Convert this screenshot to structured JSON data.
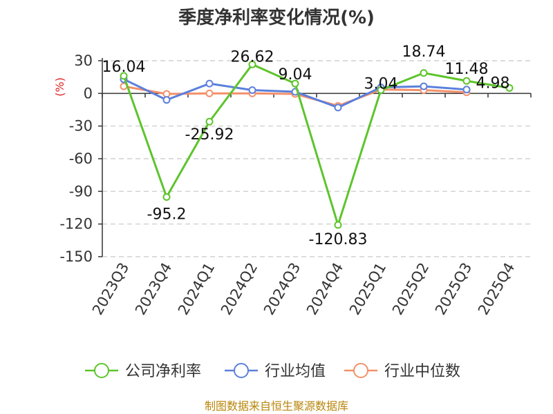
{
  "chart_data": {
    "type": "line",
    "title": "季度净利率变化情况(%)",
    "ylabel": "(%)",
    "categories": [
      "2023Q3",
      "2023Q4",
      "2024Q1",
      "2024Q2",
      "2024Q3",
      "2024Q4",
      "2025Q1",
      "2025Q2",
      "2025Q3",
      "2025Q4"
    ],
    "yticks": [
      "30",
      "0",
      "-30",
      "-60",
      "-90",
      "-120",
      "-150"
    ],
    "ylim": [
      -150,
      30
    ],
    "grid": true,
    "legend_position": "bottom",
    "series": [
      {
        "name": "公司净利率",
        "color": "#5cc42b",
        "values": [
          16.04,
          -95.2,
          -25.92,
          26.62,
          9.04,
          -120.83,
          3.04,
          18.74,
          11.48,
          4.98
        ],
        "labels": [
          "16.04",
          "-95.2",
          "-25.92",
          "26.62",
          "9.04",
          "-120.83",
          "3.04",
          "18.74",
          "11.48",
          "4.98"
        ]
      },
      {
        "name": "行业均值",
        "color": "#5b7fdc",
        "values": [
          13,
          -6,
          9,
          3,
          1.5,
          -13,
          5.5,
          6.5,
          3.5,
          null
        ]
      },
      {
        "name": "行业中位数",
        "color": "#f4906a",
        "values": [
          6.5,
          -0.5,
          0,
          0,
          -0.5,
          -11.5,
          3.5,
          3,
          1,
          null
        ]
      }
    ]
  },
  "footer": "制图数据来自恒生聚源数据库"
}
